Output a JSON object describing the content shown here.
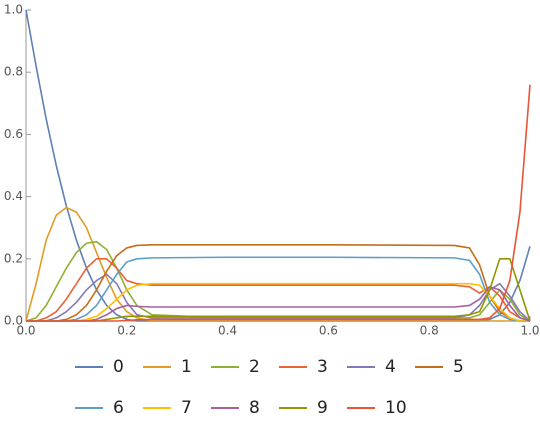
{
  "chart_data": {
    "type": "line",
    "x": [
      0,
      0.02,
      0.04,
      0.06,
      0.08,
      0.1,
      0.12,
      0.14,
      0.16,
      0.18,
      0.2,
      0.22,
      0.25,
      0.4,
      0.6,
      0.85,
      0.88,
      0.9,
      0.92,
      0.94,
      0.96,
      0.98,
      1
    ],
    "series": [
      {
        "name": "0",
        "color": "#5E81B5",
        "values": [
          1,
          0.82,
          0.65,
          0.5,
          0.37,
          0.26,
          0.17,
          0.1,
          0.05,
          0.02,
          0.005,
          0,
          0,
          0,
          0,
          0,
          0,
          0,
          0.005,
          0.02,
          0.06,
          0.13,
          0.24
        ]
      },
      {
        "name": "1",
        "color": "#E19C24",
        "values": [
          0,
          0.12,
          0.26,
          0.34,
          0.365,
          0.35,
          0.3,
          0.22,
          0.14,
          0.07,
          0.03,
          0.01,
          0,
          0,
          0,
          0,
          0,
          0,
          0,
          0,
          0,
          0,
          0
        ]
      },
      {
        "name": "2",
        "color": "#8FB032",
        "values": [
          0,
          0.01,
          0.05,
          0.11,
          0.17,
          0.22,
          0.25,
          0.255,
          0.23,
          0.17,
          0.1,
          0.05,
          0.02,
          0.01,
          0.01,
          0.01,
          0.01,
          0.02,
          0.06,
          0.1,
          0.07,
          0.02,
          0
        ]
      },
      {
        "name": "3",
        "color": "#EB6235",
        "values": [
          0,
          0,
          0.01,
          0.03,
          0.07,
          0.12,
          0.17,
          0.2,
          0.2,
          0.17,
          0.13,
          0.12,
          0.115,
          0.115,
          0.115,
          0.115,
          0.11,
          0.09,
          0.11,
          0.08,
          0.03,
          0.01,
          0
        ]
      },
      {
        "name": "4",
        "color": "#8778B3",
        "values": [
          0,
          0,
          0,
          0.01,
          0.03,
          0.06,
          0.1,
          0.13,
          0.15,
          0.12,
          0.06,
          0.02,
          0.01,
          0.01,
          0.01,
          0.01,
          0.02,
          0.05,
          0.1,
          0.12,
          0.08,
          0.03,
          0
        ]
      },
      {
        "name": "5",
        "color": "#C56E1A",
        "values": [
          0,
          0,
          0,
          0,
          0.005,
          0.02,
          0.05,
          0.1,
          0.16,
          0.21,
          0.235,
          0.243,
          0.245,
          0.245,
          0.245,
          0.243,
          0.235,
          0.18,
          0.08,
          0.03,
          0.01,
          0,
          0
        ]
      },
      {
        "name": "6",
        "color": "#5D9EC7",
        "values": [
          0,
          0,
          0,
          0,
          0,
          0.005,
          0.02,
          0.05,
          0.1,
          0.15,
          0.19,
          0.2,
          0.203,
          0.205,
          0.205,
          0.203,
          0.195,
          0.15,
          0.06,
          0.02,
          0.005,
          0,
          0
        ]
      },
      {
        "name": "7",
        "color": "#FFBF00",
        "values": [
          0,
          0,
          0,
          0,
          0,
          0,
          0.005,
          0.015,
          0.04,
          0.07,
          0.1,
          0.115,
          0.12,
          0.12,
          0.12,
          0.12,
          0.12,
          0.115,
          0.08,
          0.04,
          0.01,
          0,
          0
        ]
      },
      {
        "name": "8",
        "color": "#A5609D",
        "values": [
          0,
          0,
          0,
          0,
          0,
          0,
          0,
          0.005,
          0.02,
          0.04,
          0.05,
          0.047,
          0.045,
          0.045,
          0.045,
          0.045,
          0.05,
          0.07,
          0.11,
          0.1,
          0.05,
          0.01,
          0
        ]
      },
      {
        "name": "9",
        "color": "#929600",
        "values": [
          0,
          0,
          0,
          0,
          0,
          0,
          0,
          0,
          0.005,
          0.01,
          0.015,
          0.015,
          0.015,
          0.015,
          0.015,
          0.015,
          0.02,
          0.03,
          0.1,
          0.2,
          0.2,
          0.1,
          0
        ]
      },
      {
        "name": "10",
        "color": "#E95536",
        "values": [
          0,
          0,
          0,
          0,
          0,
          0,
          0,
          0,
          0,
          0,
          0.002,
          0.004,
          0.005,
          0.005,
          0.005,
          0.005,
          0.005,
          0.005,
          0.01,
          0.04,
          0.13,
          0.35,
          0.76
        ]
      }
    ],
    "xlim": [
      0,
      1
    ],
    "ylim": [
      0,
      1
    ],
    "xticks": [
      {
        "value": 0,
        "label": "0.0"
      },
      {
        "value": 0.2,
        "label": "0.2"
      },
      {
        "value": 0.4,
        "label": "0.4"
      },
      {
        "value": 0.6,
        "label": "0.6"
      },
      {
        "value": 0.8,
        "label": "0.8"
      },
      {
        "value": 1,
        "label": "1.0"
      }
    ],
    "yticks": [
      {
        "value": 0,
        "label": "0.0"
      },
      {
        "value": 0.2,
        "label": "0.2"
      },
      {
        "value": 0.4,
        "label": "0.4"
      },
      {
        "value": 0.6,
        "label": "0.6"
      },
      {
        "value": 0.8,
        "label": "0.8"
      },
      {
        "value": 1,
        "label": "1.0"
      }
    ],
    "grid": false,
    "legend": "bottom"
  }
}
